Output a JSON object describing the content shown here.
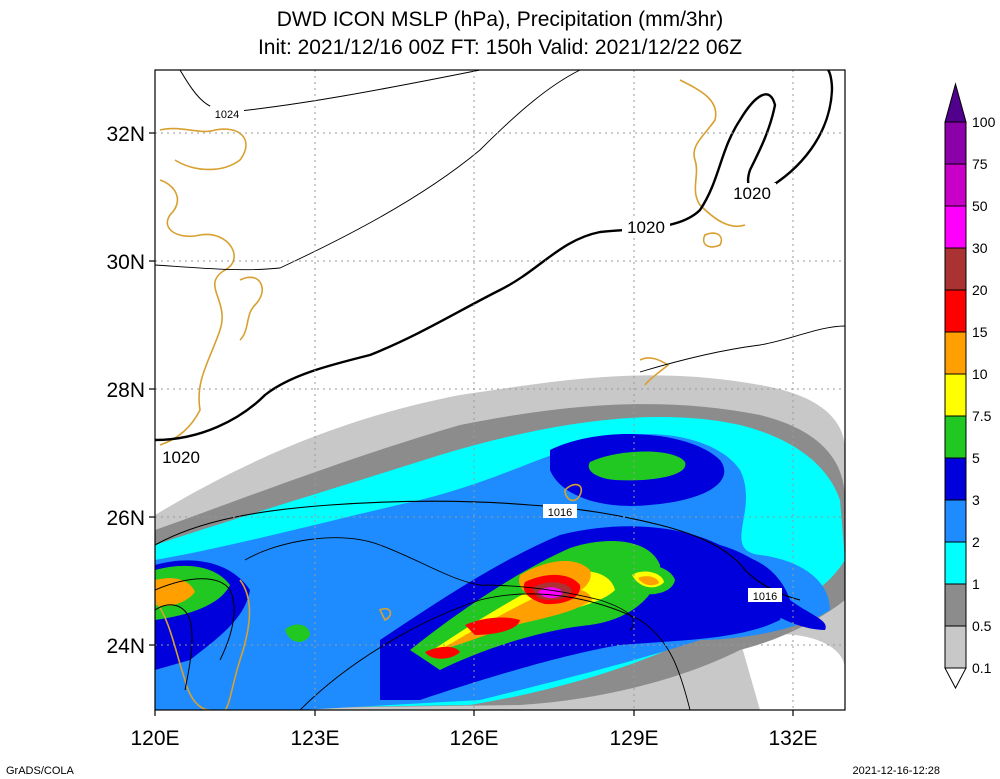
{
  "title": {
    "line1": "DWD ICON MSLP (hPa), Precipitation (mm/3hr)",
    "line2": "Init: 2021/12/16 00Z  FT: 150h  Valid: 2021/12/22 06Z"
  },
  "lat_labels": [
    "32N",
    "30N",
    "28N",
    "26N",
    "24N"
  ],
  "lon_labels": [
    "120E",
    "123E",
    "126E",
    "129E",
    "132E"
  ],
  "isobar_labels": [
    "1024",
    "1020",
    "1020",
    "1020",
    "1016",
    "1016"
  ],
  "colorbar": {
    "labels": [
      "100",
      "75",
      "50",
      "30",
      "20",
      "15",
      "10",
      "7.5",
      "5",
      "3",
      "2",
      "1",
      "0.5",
      "0.1"
    ],
    "colors": [
      "#ffffff",
      "#c8c8c8",
      "#8c8c8c",
      "#00ffff",
      "#1e8cff",
      "#0000dc",
      "#22c822",
      "#ffff00",
      "#ffa000",
      "#ff0000",
      "#aa3232",
      "#ff00ff",
      "#c800c8",
      "#8c00aa",
      "#50008c"
    ]
  },
  "colors": {
    "coastline": "#d8a030",
    "gridline": "#9a9a9a"
  },
  "footer": {
    "left": "GrADS/COLA",
    "right": "2021-12-16-12:28"
  }
}
